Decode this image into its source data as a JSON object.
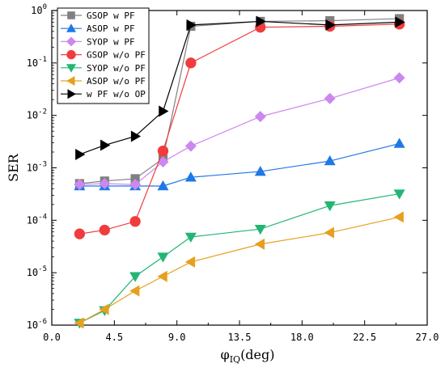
{
  "chart_data": {
    "type": "line",
    "xlabel": "φ",
    "xlabel_sub": "IQ",
    "xlabel_unit": "(deg)",
    "ylabel": "SER",
    "yscale": "log",
    "xlim": [
      0,
      27
    ],
    "ylim": [
      1e-06,
      1
    ],
    "xticks": [
      0,
      4.5,
      9,
      13.5,
      18,
      22.5,
      27
    ],
    "xtick_labels": [
      "0.0",
      "4.5",
      "9.0",
      "13.5",
      "18.0",
      "22.5",
      "27.0"
    ],
    "yticks": [
      1e-06,
      1e-05,
      0.0001,
      0.001,
      0.01,
      0.1,
      1
    ],
    "ytick_labels": [
      {
        "base": "10",
        "exp": "-6"
      },
      {
        "base": "10",
        "exp": "-5"
      },
      {
        "base": "10",
        "exp": "-4"
      },
      {
        "base": "10",
        "exp": "-3"
      },
      {
        "base": "10",
        "exp": "-2"
      },
      {
        "base": "10",
        "exp": "-1"
      },
      {
        "base": "10",
        "exp": "0"
      }
    ],
    "legend_position": "top-left",
    "grid": false,
    "series": [
      {
        "name": "GSOP w PF",
        "color": "#808080",
        "marker": "square",
        "x": [
          2,
          3.8,
          6,
          8,
          10,
          15,
          20,
          25
        ],
        "y": [
          0.0005,
          0.00056,
          0.00062,
          0.0015,
          0.5,
          0.62,
          0.64,
          0.7
        ]
      },
      {
        "name": "ASOP w PF",
        "color": "#1e78e6",
        "marker": "triangle-up",
        "x": [
          2,
          3.8,
          6,
          8,
          10,
          15,
          20,
          25
        ],
        "y": [
          0.00045,
          0.00045,
          0.00045,
          0.00045,
          0.00066,
          0.00085,
          0.00135,
          0.0029
        ]
      },
      {
        "name": "SYOP w PF",
        "color": "#cc88ee",
        "marker": "diamond",
        "x": [
          2,
          3.8,
          6,
          8,
          10,
          15,
          20,
          25
        ],
        "y": [
          0.00048,
          0.0005,
          0.00048,
          0.0013,
          0.0026,
          0.0095,
          0.021,
          0.052
        ]
      },
      {
        "name": "GSOP w/o PF",
        "color": "#f03c3c",
        "marker": "circle",
        "x": [
          2,
          3.8,
          6,
          8,
          10,
          15,
          20,
          25
        ],
        "y": [
          5.5e-05,
          6.5e-05,
          9.5e-05,
          0.0021,
          0.1,
          0.48,
          0.5,
          0.55
        ]
      },
      {
        "name": "SYOP w/o PF",
        "color": "#22b573",
        "marker": "triangle-down",
        "x": [
          2,
          3.8,
          6,
          8,
          10,
          15,
          20,
          25
        ],
        "y": [
          1.1e-06,
          1.9e-06,
          8.5e-06,
          2e-05,
          4.8e-05,
          6.8e-05,
          0.00019,
          0.00032
        ]
      },
      {
        "name": "ASOP w/o PF",
        "color": "#e6a020",
        "marker": "triangle-left",
        "x": [
          2,
          3.8,
          6,
          8,
          10,
          15,
          20,
          25
        ],
        "y": [
          1.1e-06,
          2e-06,
          4.5e-06,
          8.5e-06,
          1.6e-05,
          3.5e-05,
          5.8e-05,
          0.000115
        ]
      },
      {
        "name": "w PF w/o OP",
        "color": "#000000",
        "marker": "triangle-right",
        "x": [
          2,
          3.8,
          6,
          8,
          10,
          15,
          20,
          25
        ],
        "y": [
          0.0018,
          0.0027,
          0.004,
          0.012,
          0.53,
          0.62,
          0.53,
          0.6
        ]
      }
    ]
  }
}
